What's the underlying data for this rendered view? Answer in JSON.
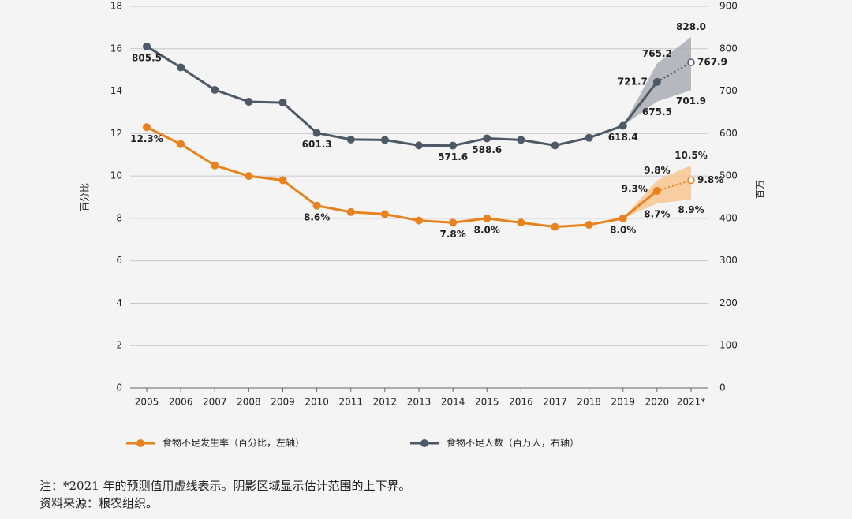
{
  "chart_data": {
    "type": "line",
    "categories": [
      "2005",
      "2006",
      "2007",
      "2008",
      "2009",
      "2010",
      "2011",
      "2012",
      "2013",
      "2014",
      "2015",
      "2016",
      "2017",
      "2018",
      "2019",
      "2020",
      "2021*"
    ],
    "forecast": [
      false,
      false,
      false,
      false,
      false,
      false,
      false,
      false,
      false,
      false,
      false,
      false,
      false,
      false,
      false,
      false,
      true
    ],
    "ylabel": "百分比",
    "y2label": "百万",
    "ylim": [
      0,
      18
    ],
    "yticks": [
      0,
      2,
      4,
      6,
      8,
      10,
      12,
      14,
      16,
      18
    ],
    "y2lim": [
      0,
      900
    ],
    "y2ticks": [
      0,
      100,
      200,
      300,
      400,
      500,
      600,
      700,
      800,
      900
    ],
    "grid": true,
    "series": [
      {
        "name": "食物不足发生率（百分比，左轴）",
        "color": "#e8821e",
        "band_color": "#f8c690",
        "axis": "y",
        "values": [
          12.3,
          11.5,
          10.5,
          10.0,
          9.8,
          8.6,
          8.3,
          8.2,
          7.9,
          7.8,
          8.0,
          7.8,
          7.6,
          7.7,
          8.0,
          9.3,
          9.8
        ],
        "value_labels": [
          "12.3%",
          null,
          null,
          null,
          null,
          "8.6%",
          null,
          null,
          null,
          "7.8%",
          "8.0%",
          null,
          null,
          null,
          "8.0%",
          "9.3%",
          "9.8%"
        ],
        "upper": [
          null,
          null,
          null,
          null,
          null,
          null,
          null,
          null,
          null,
          null,
          null,
          null,
          null,
          null,
          null,
          9.8,
          10.5
        ],
        "upper_labels": [
          null,
          null,
          null,
          null,
          null,
          null,
          null,
          null,
          null,
          null,
          null,
          null,
          null,
          null,
          null,
          "9.8%",
          "10.5%"
        ],
        "lower": [
          null,
          null,
          null,
          null,
          null,
          null,
          null,
          null,
          null,
          null,
          null,
          null,
          null,
          null,
          null,
          8.7,
          8.9
        ],
        "lower_labels": [
          null,
          null,
          null,
          null,
          null,
          null,
          null,
          null,
          null,
          null,
          null,
          null,
          null,
          null,
          null,
          "8.7%",
          "8.9%"
        ]
      },
      {
        "name": "食物不足人数（百万人，右轴）",
        "color": "#4d5966",
        "band_color": "#a9aeb5",
        "axis": "y2",
        "values": [
          805.5,
          756,
          703,
          675,
          673,
          601.3,
          586,
          585,
          572,
          571.6,
          588.6,
          585,
          572,
          590,
          618.4,
          721.7,
          767.9
        ],
        "value_labels": [
          "805.5",
          null,
          null,
          null,
          null,
          "601.3",
          null,
          null,
          null,
          "571.6",
          "588.6",
          null,
          null,
          null,
          "618.4",
          "721.7",
          "767.9"
        ],
        "upper": [
          null,
          null,
          null,
          null,
          null,
          null,
          null,
          null,
          null,
          null,
          null,
          null,
          null,
          null,
          null,
          765.2,
          828.0
        ],
        "upper_labels": [
          null,
          null,
          null,
          null,
          null,
          null,
          null,
          null,
          null,
          null,
          null,
          null,
          null,
          null,
          null,
          "765.2",
          "828.0"
        ],
        "lower": [
          null,
          null,
          null,
          null,
          null,
          null,
          null,
          null,
          null,
          null,
          null,
          null,
          null,
          null,
          null,
          675.5,
          701.9
        ],
        "lower_labels": [
          null,
          null,
          null,
          null,
          null,
          null,
          null,
          null,
          null,
          null,
          null,
          null,
          null,
          null,
          null,
          "675.5",
          "701.9"
        ]
      }
    ],
    "notes": [
      "注：*2021 年的预测值用虚线表示。阴影区域显示估计范围的上下界。",
      "资料来源：粮农组织。"
    ]
  }
}
